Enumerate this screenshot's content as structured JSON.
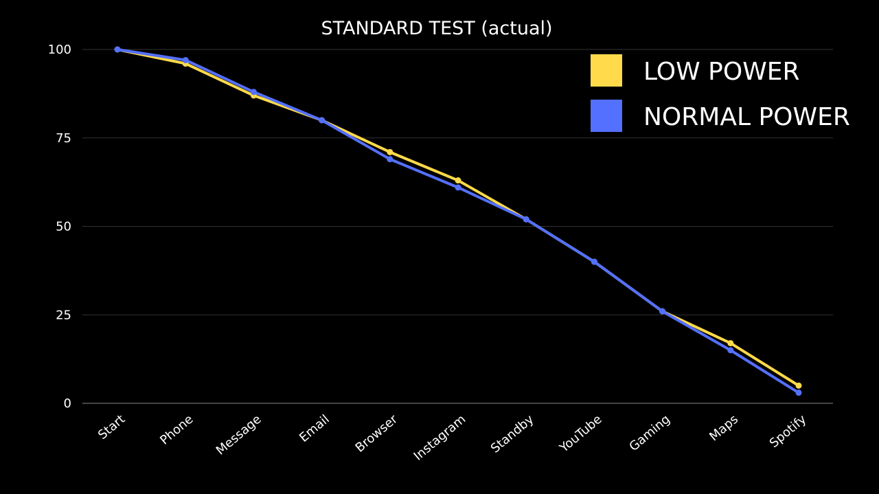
{
  "chart_data": {
    "type": "line",
    "title": "STANDARD TEST (actual)",
    "xlabel": "",
    "ylabel": "",
    "categories": [
      "Start",
      "Phone",
      "Message",
      "Email",
      "Browser",
      "Instagram",
      "Standby",
      "YouTube",
      "Gaming",
      "Maps",
      "Spotify"
    ],
    "ylim": [
      0,
      100
    ],
    "yticks": [
      "0",
      "25",
      "50",
      "75",
      "100"
    ],
    "grid": true,
    "legend_placement": "top-right",
    "series": [
      {
        "name": "LOW POWER",
        "color": "#FFDA4A",
        "values": [
          100,
          96,
          87,
          80,
          71,
          63,
          52,
          40,
          26,
          17,
          5
        ]
      },
      {
        "name": "NORMAL POWER",
        "color": "#5470FF",
        "values": [
          100,
          97,
          88,
          80,
          69,
          61,
          52,
          40,
          26,
          15,
          3
        ]
      }
    ]
  }
}
